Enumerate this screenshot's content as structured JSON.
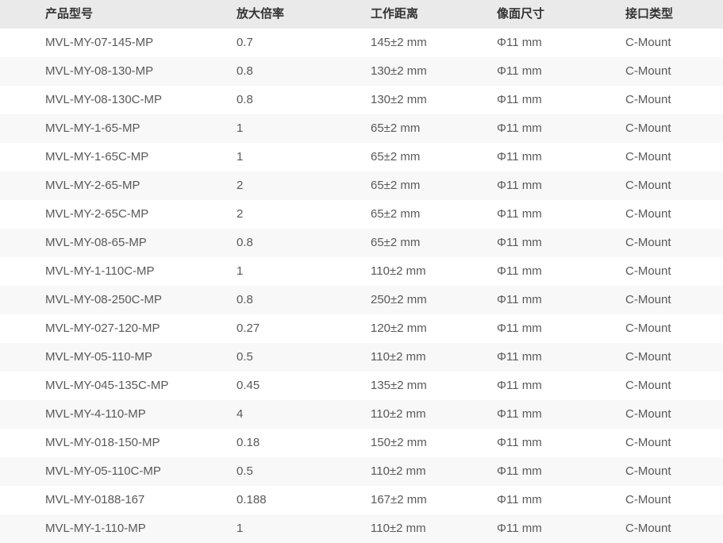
{
  "chart_data": {
    "type": "table",
    "columns": [
      "产品型号",
      "放大倍率",
      "工作距离",
      "像面尺寸",
      "接口类型"
    ],
    "rows": [
      [
        "MVL-MY-07-145-MP",
        "0.7",
        "145±2 mm",
        "Φ11 mm",
        "C-Mount"
      ],
      [
        "MVL-MY-08-130-MP",
        "0.8",
        "130±2 mm",
        "Φ11 mm",
        "C-Mount"
      ],
      [
        "MVL-MY-08-130C-MP",
        "0.8",
        "130±2 mm",
        "Φ11 mm",
        "C-Mount"
      ],
      [
        "MVL-MY-1-65-MP",
        "1",
        "65±2 mm",
        "Φ11 mm",
        "C-Mount"
      ],
      [
        "MVL-MY-1-65C-MP",
        "1",
        "65±2 mm",
        "Φ11 mm",
        "C-Mount"
      ],
      [
        "MVL-MY-2-65-MP",
        "2",
        "65±2 mm",
        "Φ11 mm",
        "C-Mount"
      ],
      [
        "MVL-MY-2-65C-MP",
        "2",
        "65±2 mm",
        "Φ11 mm",
        "C-Mount"
      ],
      [
        "MVL-MY-08-65-MP",
        "0.8",
        "65±2 mm",
        "Φ11 mm",
        "C-Mount"
      ],
      [
        "MVL-MY-1-110C-MP",
        "1",
        "110±2 mm",
        "Φ11 mm",
        "C-Mount"
      ],
      [
        "MVL-MY-08-250C-MP",
        "0.8",
        "250±2 mm",
        "Φ11 mm",
        "C-Mount"
      ],
      [
        "MVL-MY-027-120-MP",
        "0.27",
        "120±2 mm",
        "Φ11 mm",
        "C-Mount"
      ],
      [
        "MVL-MY-05-110-MP",
        "0.5",
        "110±2 mm",
        "Φ11 mm",
        "C-Mount"
      ],
      [
        "MVL-MY-045-135C-MP",
        "0.45",
        "135±2 mm",
        "Φ11 mm",
        "C-Mount"
      ],
      [
        "MVL-MY-4-110-MP",
        "4",
        "110±2 mm",
        "Φ11 mm",
        "C-Mount"
      ],
      [
        "MVL-MY-018-150-MP",
        "0.18",
        "150±2 mm",
        "Φ11 mm",
        "C-Mount"
      ],
      [
        "MVL-MY-05-110C-MP",
        "0.5",
        "110±2 mm",
        "Φ11 mm",
        "C-Mount"
      ],
      [
        "MVL-MY-0188-167",
        "0.188",
        "167±2 mm",
        "Φ11 mm",
        "C-Mount"
      ],
      [
        "MVL-MY-1-110-MP",
        "1",
        "110±2 mm",
        "Φ11 mm",
        "C-Mount"
      ]
    ]
  },
  "colors": {
    "header_bg": "#eaeaea",
    "stripe_bg": "#f8f8f8",
    "header_text": "#333333",
    "body_text": "#595959"
  }
}
